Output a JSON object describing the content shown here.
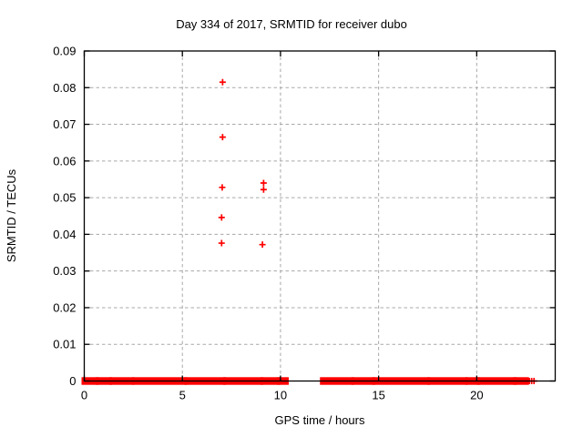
{
  "chart_data": {
    "type": "scatter",
    "title": "Day 334 of 2017, SRMTID for receiver dubo",
    "xlabel": "GPS time / hours",
    "ylabel": "SRMTID / TECUs",
    "xlim": [
      0,
      24
    ],
    "ylim": [
      0,
      0.09
    ],
    "xticks": [
      0,
      5,
      10,
      15,
      20
    ],
    "xgridlines": [
      5,
      10,
      15,
      20
    ],
    "yticks": [
      0,
      0.01,
      0.02,
      0.03,
      0.04,
      0.05,
      0.06,
      0.07,
      0.08,
      0.09
    ],
    "ytick_labels": [
      "0",
      "0.01",
      "0.02",
      "0.03",
      "0.04",
      "0.05",
      "0.06",
      "0.07",
      "0.08",
      "0.09"
    ],
    "grid": true,
    "legend": "none",
    "marker": "plus",
    "series": [
      {
        "name": "SRMTID",
        "color": "#ff0000",
        "outlier_points": [
          {
            "x": 7.05,
            "y": 0.0815
          },
          {
            "x": 7.05,
            "y": 0.0665
          },
          {
            "x": 7.03,
            "y": 0.0528
          },
          {
            "x": 7.0,
            "y": 0.0446
          },
          {
            "x": 7.0,
            "y": 0.0376
          },
          {
            "x": 9.14,
            "y": 0.054
          },
          {
            "x": 9.14,
            "y": 0.0522
          },
          {
            "x": 9.08,
            "y": 0.0372
          }
        ],
        "zero_band_value": 0,
        "zero_band_segments_hours": [
          [
            0.0,
            0.6
          ],
          [
            0.73,
            1.28
          ],
          [
            1.42,
            2.4
          ],
          [
            2.58,
            5.1
          ],
          [
            5.24,
            7.08
          ],
          [
            7.22,
            8.98
          ],
          [
            9.12,
            9.85
          ],
          [
            9.97,
            10.28
          ],
          [
            12.15,
            13.6
          ],
          [
            13.76,
            14.68
          ],
          [
            14.82,
            17.48
          ],
          [
            17.62,
            19.4
          ],
          [
            19.56,
            20.02
          ],
          [
            20.15,
            21.9
          ],
          [
            22.0,
            22.52
          ]
        ],
        "zero_band_lone_points_hours": [
          22.68,
          22.8,
          22.92
        ]
      }
    ]
  },
  "style": {
    "point_color": "#ff0000",
    "grid_color": "#a8a8a8",
    "axis_color": "#000000",
    "background": "#ffffff"
  }
}
